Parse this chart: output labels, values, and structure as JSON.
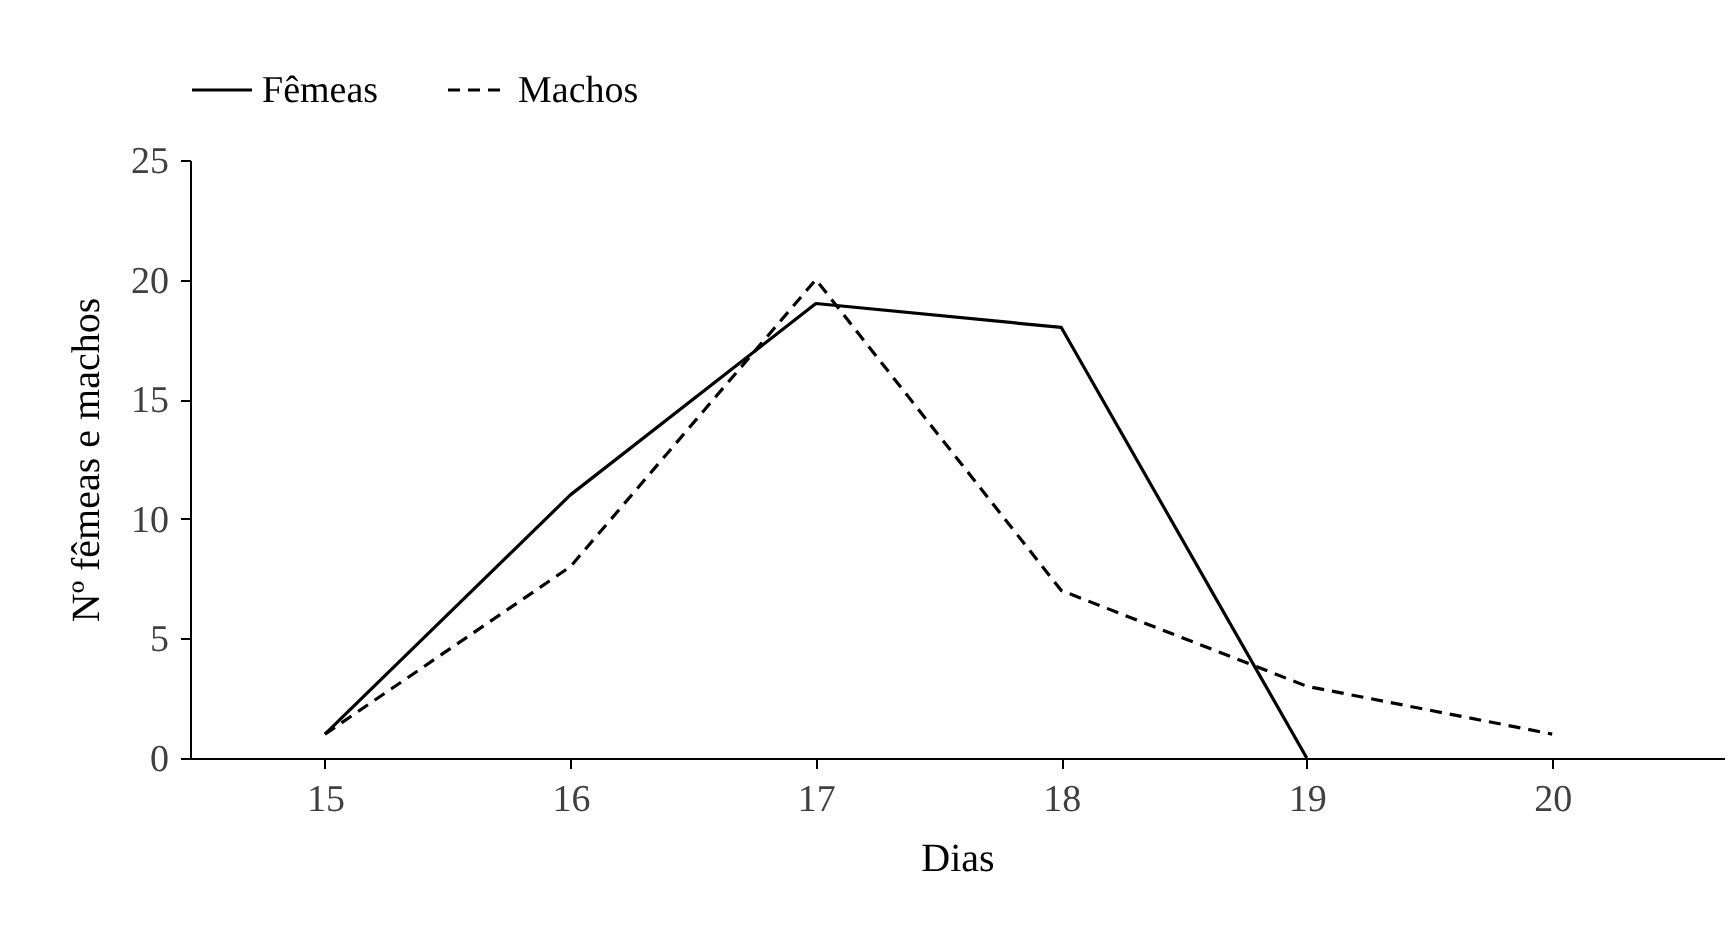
{
  "chart_data": {
    "type": "line",
    "xlabel": "Dias",
    "ylabel": "Nº fêmeas e machos",
    "xlim": [
      14.45,
      20.7
    ],
    "xticks": [
      15,
      16,
      17,
      18,
      19,
      20
    ],
    "ylim": [
      0,
      25
    ],
    "yticks": [
      0,
      5,
      10,
      15,
      20,
      25
    ],
    "grid": false,
    "legend": "top",
    "marker": "none",
    "series": [
      {
        "name": "Fêmeas",
        "color": "#000000",
        "line_style": "solid",
        "x": [
          15,
          16,
          17,
          18,
          19
        ],
        "values": [
          1,
          11,
          19,
          18,
          0
        ]
      },
      {
        "name": "Machos",
        "color": "#000000",
        "line_style": "dashed",
        "x": [
          15,
          16,
          17,
          18,
          19,
          20
        ],
        "values": [
          1,
          8,
          20,
          7,
          3,
          1
        ]
      }
    ]
  }
}
